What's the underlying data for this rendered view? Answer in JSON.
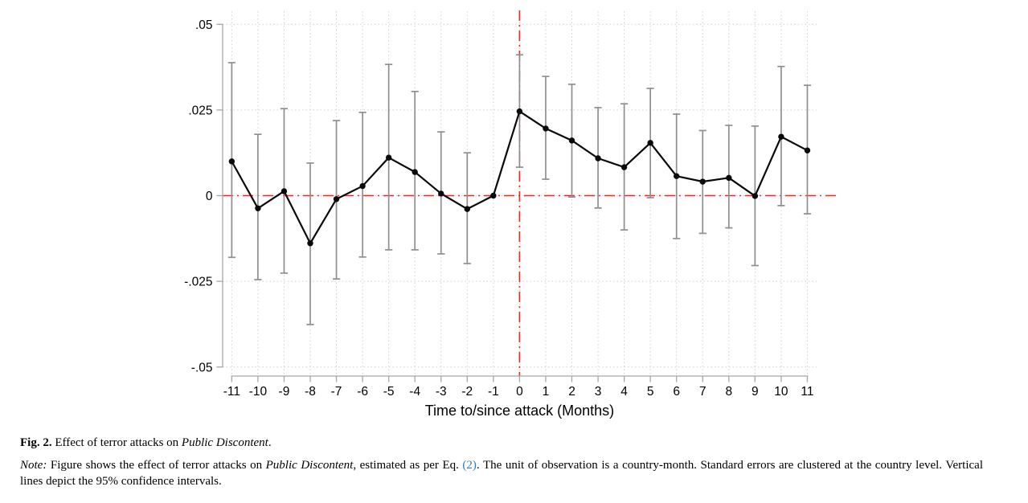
{
  "figure": {
    "caption": {
      "fig_label": "Fig. 2.",
      "title_text": " Effect of terror attacks on ",
      "title_italic": "Public Discontent",
      "title_period": ".",
      "note_label": "Note:",
      "note_1": " Figure shows the effect of terror attacks on ",
      "note_italic": "Public Discontent",
      "note_2": ", estimated as per Eq. ",
      "eq_ref": "(2)",
      "note_3": ". The unit of observation is a country-month. Standard errors are clustered at the country level. Vertical lines depict the 95% confidence intervals."
    }
  },
  "chart_data": {
    "type": "line",
    "subtype": "event-study coefficient plot with 95% confidence interval whiskers",
    "title": "",
    "xlabel": "Time to/since attack (Months)",
    "ylabel": "",
    "x": [
      -11,
      -10,
      -9,
      -8,
      -7,
      -6,
      -5,
      -4,
      -3,
      -2,
      -1,
      0,
      1,
      2,
      3,
      4,
      5,
      6,
      7,
      8,
      9,
      10,
      11
    ],
    "xtick_labels": [
      "-11",
      "-10",
      "-9",
      "-8",
      "-7",
      "-6",
      "-5",
      "-4",
      "-3",
      "-2",
      "-1",
      "0",
      "1",
      "2",
      "3",
      "4",
      "5",
      "6",
      "7",
      "8",
      "9",
      "10",
      "11"
    ],
    "series": [
      {
        "name": "coefficient estimate",
        "values": [
          0.01,
          -0.0037,
          0.0013,
          -0.0139,
          -0.001,
          0.0028,
          0.0111,
          0.0069,
          0.0006,
          -0.0039,
          0.0,
          0.0246,
          0.0196,
          0.0161,
          0.0109,
          0.0083,
          0.0154,
          0.0057,
          0.0041,
          0.0052,
          -0.0001,
          0.0172,
          0.0132
        ]
      }
    ],
    "ci_low": [
      -0.018,
      -0.0245,
      -0.0226,
      -0.0376,
      -0.0243,
      -0.0179,
      -0.0158,
      -0.0158,
      -0.017,
      -0.0198,
      null,
      0.0083,
      0.0048,
      -0.0004,
      -0.0036,
      -0.01,
      -0.0006,
      -0.0125,
      -0.011,
      -0.0094,
      -0.0204,
      -0.0029,
      -0.0053
    ],
    "ci_high": [
      0.0388,
      0.0179,
      0.0254,
      0.0095,
      0.0219,
      0.0243,
      0.0383,
      0.0304,
      0.0186,
      0.0125,
      null,
      0.0411,
      0.0348,
      0.0325,
      0.0257,
      0.0268,
      0.0313,
      0.0238,
      0.019,
      0.0205,
      0.0203,
      0.0377,
      0.0322
    ],
    "reference_month_without_ci": -1,
    "yticks": [
      -0.05,
      -0.025,
      0,
      0.025,
      0.05
    ],
    "ytick_labels": [
      "-.05",
      "-.025",
      "0",
      ".025",
      ".05"
    ],
    "ylim": [
      -0.057,
      0.057
    ],
    "xlim": [
      -11.5,
      11.5
    ],
    "grid": "dotted gridlines at every x month and every y tick",
    "legend": "none",
    "zero_line": {
      "axis": "y",
      "value": 0,
      "style": "dashed",
      "color": "#ff2018"
    },
    "event_line": {
      "axis": "x",
      "value": 0,
      "style": "dashed",
      "color": "#ff2018"
    }
  },
  "colors": {
    "background": "#ffffff",
    "series_line": "#0a0a0a",
    "marker": "#0a0a0a",
    "error_bar": "#8f8f8f",
    "axis_line": "#a6a6a6",
    "grid_dots": "#cfcfcf",
    "reference_red": "#ff2018",
    "eq_link_blue": "#2e7ebc",
    "text": "#000000"
  }
}
